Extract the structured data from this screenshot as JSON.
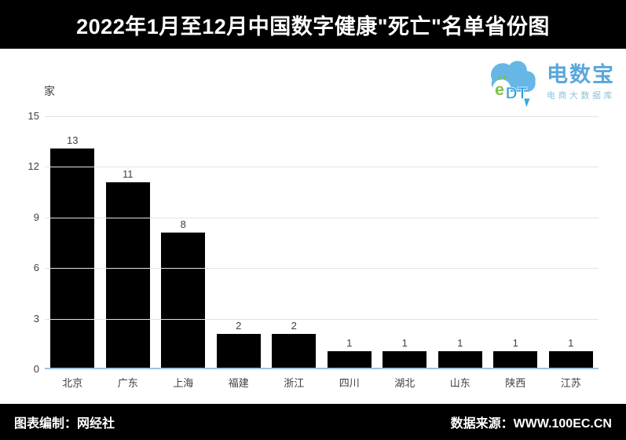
{
  "banner": {
    "title": "2022年1月至12月中国数字健康\"死亡\"名单省份图",
    "bg_color": "#000000",
    "text_color": "#ffffff"
  },
  "logo": {
    "cloud_text": "eDT",
    "name": "电数宝",
    "subtitle": "电商大数据库",
    "cloud_color": "#66b7e6",
    "e_color": "#7dc242",
    "dt_color": "#2d9fe0",
    "name_color": "#5aa7db",
    "subtitle_color": "#8fc3d8"
  },
  "chart_data": {
    "type": "bar",
    "title": "2022年1月至12月中国数字健康\"死亡\"名单省份图",
    "unit_label": "家",
    "categories": [
      "北京",
      "广东",
      "上海",
      "福建",
      "浙江",
      "四川",
      "湖北",
      "山东",
      "陕西",
      "江苏"
    ],
    "values": [
      13,
      11,
      8,
      2,
      2,
      1,
      1,
      1,
      1,
      1
    ],
    "xlabel": "",
    "ylabel": "家",
    "ylim": [
      0,
      15
    ],
    "yticks": [
      0,
      3,
      6,
      9,
      12,
      15
    ],
    "grid": true,
    "legend": "none",
    "bar_color": "#000000",
    "gridline_color": "#e3e3e3",
    "axis_line_color": "#9cc2e5",
    "label_color": "#404040"
  },
  "footer": {
    "left": "图表编制：网经社",
    "right": "数据来源：WWW.100EC.CN",
    "bg_color": "#000000",
    "text_color": "#ffffff"
  }
}
